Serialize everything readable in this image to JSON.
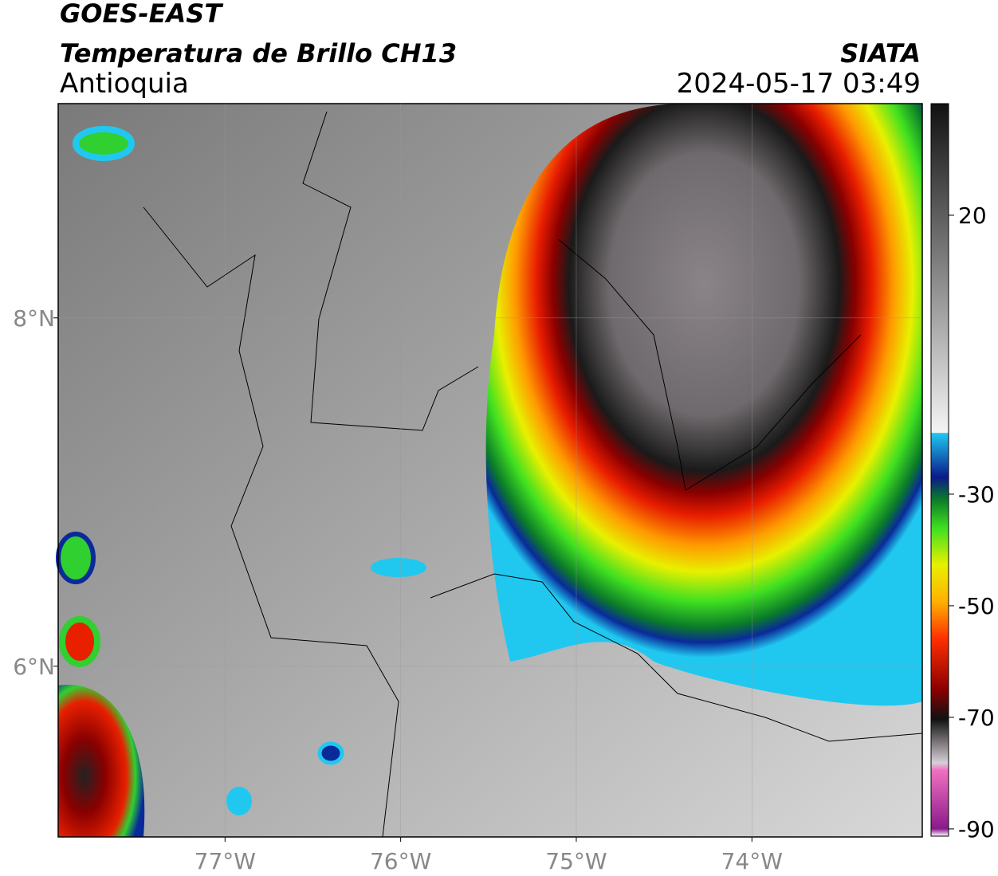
{
  "header": {
    "satellite": "GOES-EAST",
    "product": "Temperatura de Brillo CH13",
    "region": "Antioquia",
    "source": "SIATA",
    "datetime": "2024-05-17 03:49"
  },
  "map": {
    "xlim": [
      -77.95,
      -73.03
    ],
    "ylim": [
      5.02,
      9.23
    ],
    "xticks": [
      {
        "value": -77,
        "label": "77°W"
      },
      {
        "value": -76,
        "label": "76°W"
      },
      {
        "value": -75,
        "label": "75°W"
      },
      {
        "value": -74,
        "label": "74°W"
      }
    ],
    "yticks": [
      {
        "value": 6,
        "label": "6°N"
      },
      {
        "value": 8,
        "label": "8°N"
      }
    ],
    "grid": true
  },
  "colorbar": {
    "lim": [
      -91.3,
      40
    ],
    "ticks": [
      -90,
      -70,
      -50,
      -30,
      20
    ]
  }
}
